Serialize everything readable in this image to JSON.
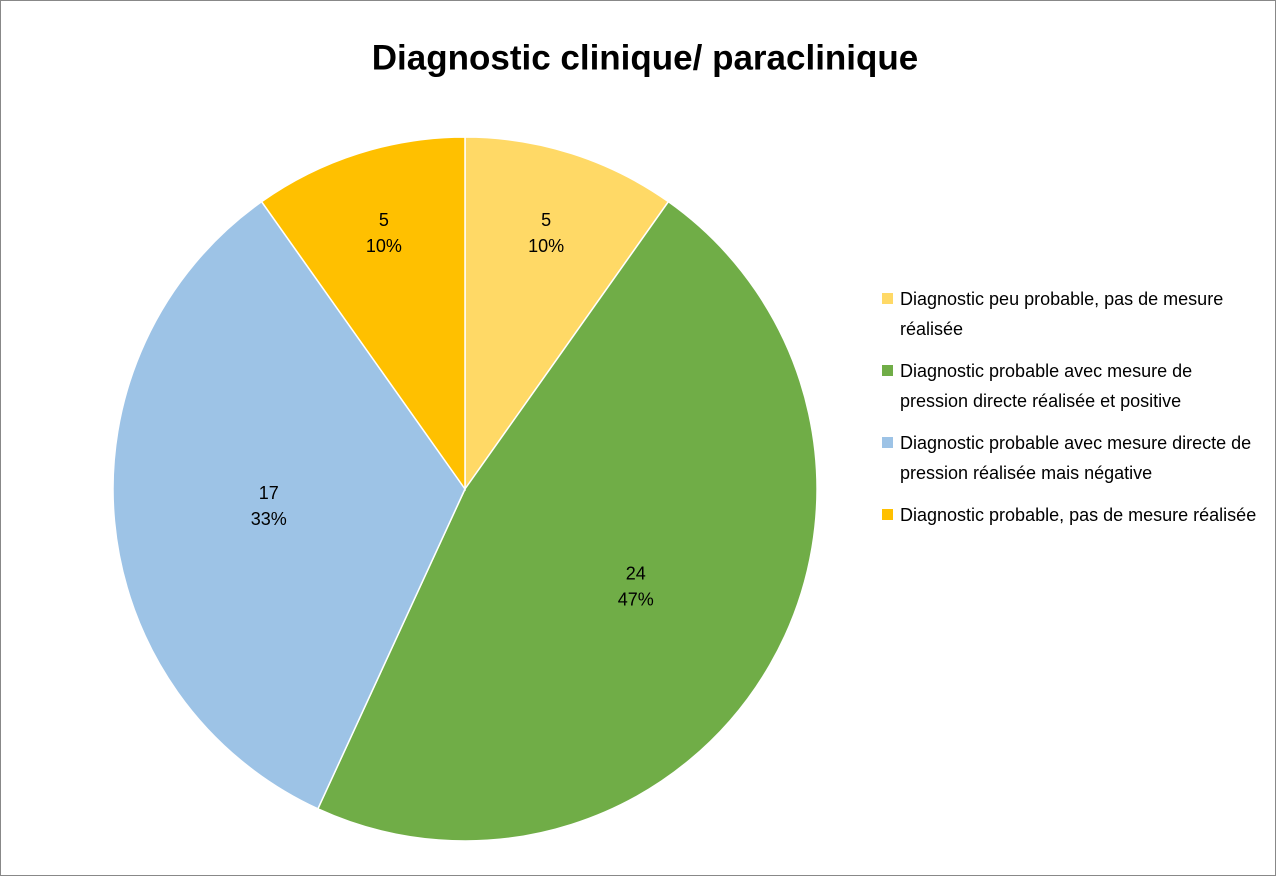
{
  "chart_data": {
    "type": "pie",
    "title": "Diagnostic clinique/ paraclinique",
    "categories": [
      "Diagnostic peu probable, pas de mesure réalisée",
      "Diagnostic probable avec mesure de pression directe réalisée et positive",
      "Diagnostic probable avec mesure directe de pression réalisée mais négative",
      "Diagnostic probable, pas de mesure réalisée"
    ],
    "values": [
      5,
      24,
      17,
      5
    ],
    "percent_labels": [
      "10%",
      "47%",
      "33%",
      "10%"
    ],
    "colors": [
      "#FFD966",
      "#70AD47",
      "#9DC3E6",
      "#FFC000"
    ],
    "legend": "right"
  }
}
